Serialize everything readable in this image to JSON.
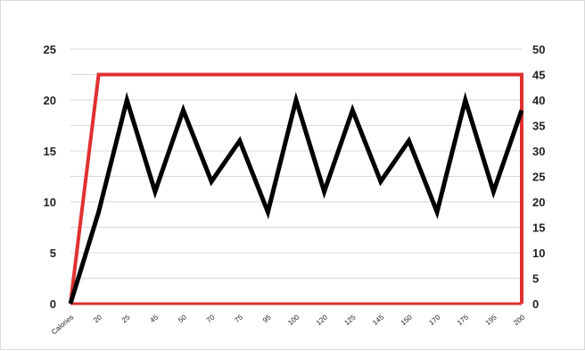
{
  "chart_data": {
    "type": "line",
    "categories": [
      "Calories",
      "20",
      "25",
      "45",
      "50",
      "70",
      "75",
      "95",
      "100",
      "120",
      "125",
      "145",
      "150",
      "170",
      "175",
      "195",
      "200"
    ],
    "series": [
      {
        "axis": "left",
        "color": "#000000",
        "values": [
          0,
          9,
          20,
          11,
          19,
          12,
          16,
          9,
          20,
          11,
          19,
          12,
          16,
          9,
          20,
          11,
          19
        ]
      },
      {
        "axis": "right",
        "color": "#e03030",
        "values": [
          0,
          45,
          45,
          45,
          45,
          45,
          45,
          45,
          45,
          45,
          45,
          45,
          45,
          45,
          45,
          45,
          45
        ],
        "drop_to_zero_at_end": true
      }
    ],
    "y_left": {
      "range": [
        0,
        25
      ],
      "ticks": [
        "0",
        "5",
        "10",
        "15",
        "20",
        "25"
      ]
    },
    "y_right": {
      "range": [
        0,
        50
      ],
      "ticks": [
        "0",
        "5",
        "10",
        "15",
        "20",
        "25",
        "30",
        "35",
        "40",
        "45",
        "50"
      ]
    },
    "grid": true,
    "legend": "none"
  }
}
